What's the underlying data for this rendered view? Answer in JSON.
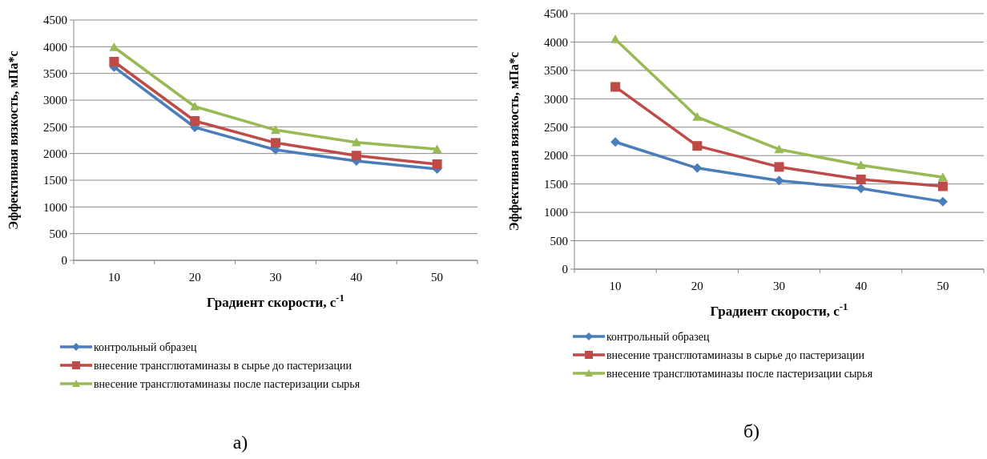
{
  "chart_data": [
    {
      "type": "line",
      "xlabel": "Градиент скорости, с$^{-1}$",
      "ylabel": "Эффективная вязкость, мПа*с",
      "categories": [
        "10",
        "20",
        "30",
        "40",
        "50"
      ],
      "ylim": [
        0,
        4500
      ],
      "yticks": [
        0,
        500,
        1000,
        1500,
        2000,
        2500,
        3000,
        3500,
        4000,
        4500
      ],
      "grid": "y",
      "legend": "bottom",
      "annotations": [
        "а)"
      ],
      "series": [
        {
          "name": "контрольный образец",
          "color": "#4a7ebb",
          "marker": "diamond",
          "values": [
            3620,
            2490,
            2070,
            1860,
            1710
          ]
        },
        {
          "name": "внесение трансглютаминазы в сырье до пастеризации",
          "color": "#be4b48",
          "marker": "square",
          "values": [
            3720,
            2610,
            2200,
            1960,
            1800
          ]
        },
        {
          "name": "внесение трансглютаминазы после пастеризации сырья",
          "color": "#98b954",
          "marker": "triangle",
          "values": [
            3990,
            2880,
            2440,
            2210,
            2080
          ]
        }
      ]
    },
    {
      "type": "line",
      "xlabel": "Градиент скорости, с$^{-1}$",
      "ylabel": "Эффективная вязкость, мПа*с",
      "categories": [
        "10",
        "20",
        "30",
        "40",
        "50"
      ],
      "ylim": [
        0,
        4500
      ],
      "yticks": [
        0,
        500,
        1000,
        1500,
        2000,
        2500,
        3000,
        3500,
        4000,
        4500
      ],
      "grid": "y",
      "legend": "bottom",
      "annotations": [
        "б)"
      ],
      "series": [
        {
          "name": "контрольный образец",
          "color": "#4a7ebb",
          "marker": "diamond",
          "values": [
            2240,
            1780,
            1560,
            1420,
            1190
          ]
        },
        {
          "name": "внесение трансглютаминазы в сырье до пастеризации",
          "color": "#be4b48",
          "marker": "square",
          "values": [
            3210,
            2170,
            1800,
            1580,
            1460
          ]
        },
        {
          "name": "внесение трансглютаминазы после пастеризации сырья",
          "color": "#98b954",
          "marker": "triangle",
          "values": [
            4050,
            2680,
            2110,
            1830,
            1620
          ]
        }
      ]
    }
  ]
}
